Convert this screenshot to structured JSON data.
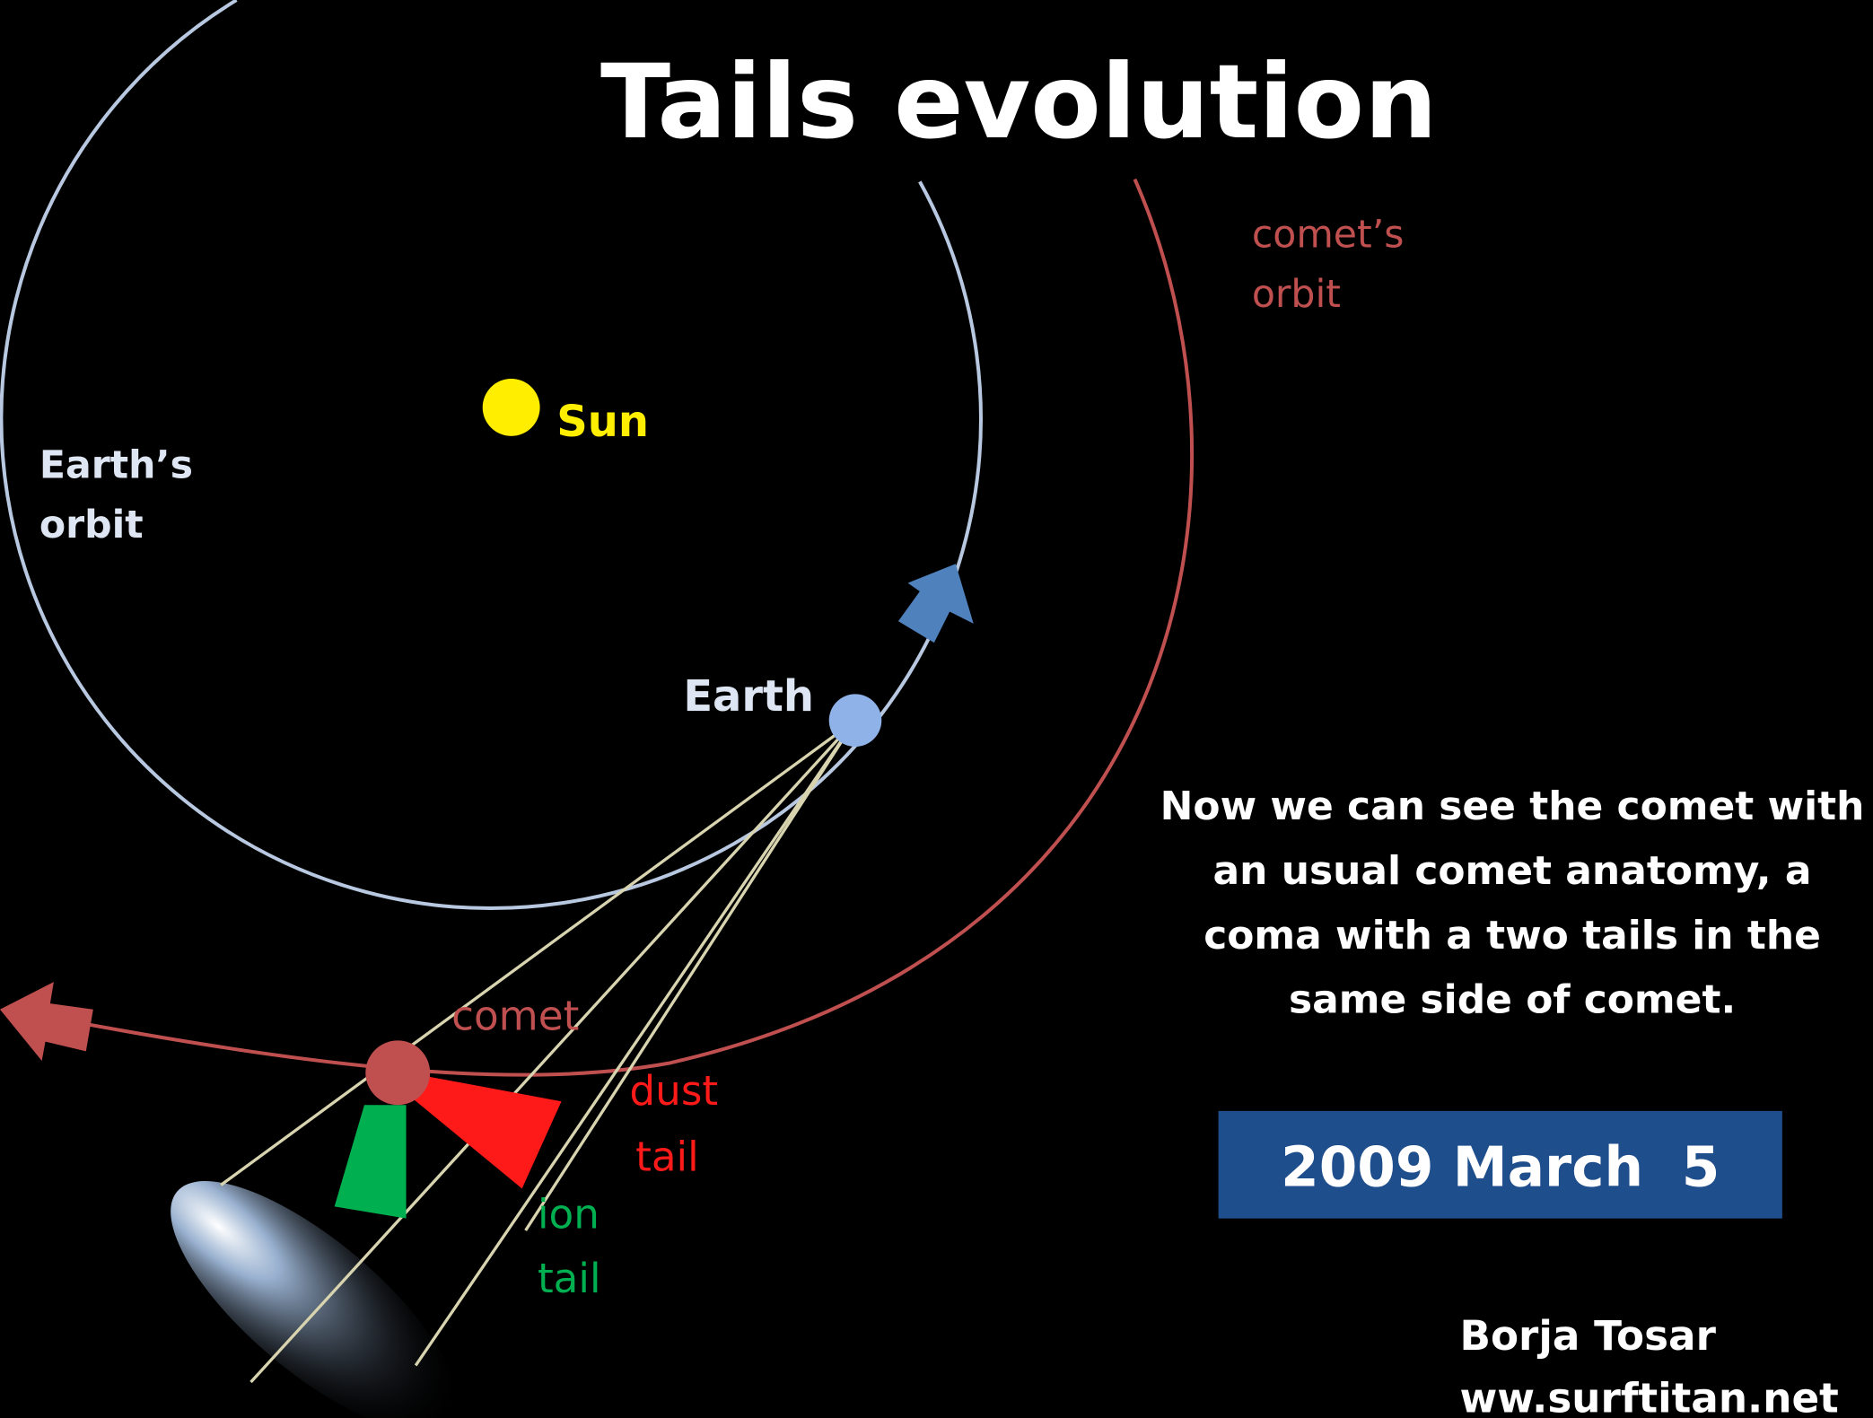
{
  "title": "Tails evolution",
  "labels": {
    "sun": "Sun",
    "earth": "Earth",
    "earth_orbit": [
      "Earth’s",
      "orbit"
    ],
    "comet_orbit": [
      "comet’s",
      "orbit"
    ],
    "comet": "comet",
    "dust_tail": [
      "dust",
      "tail"
    ],
    "ion_tail": [
      "ion",
      "tail"
    ]
  },
  "description": [
    "Now we can see the comet with",
    "an usual comet anatomy, a",
    "coma with a two tails in the",
    "same side of comet."
  ],
  "date": "2009 March  5",
  "credit": [
    "Borja Tosar",
    "ww.surftitan.net"
  ]
}
